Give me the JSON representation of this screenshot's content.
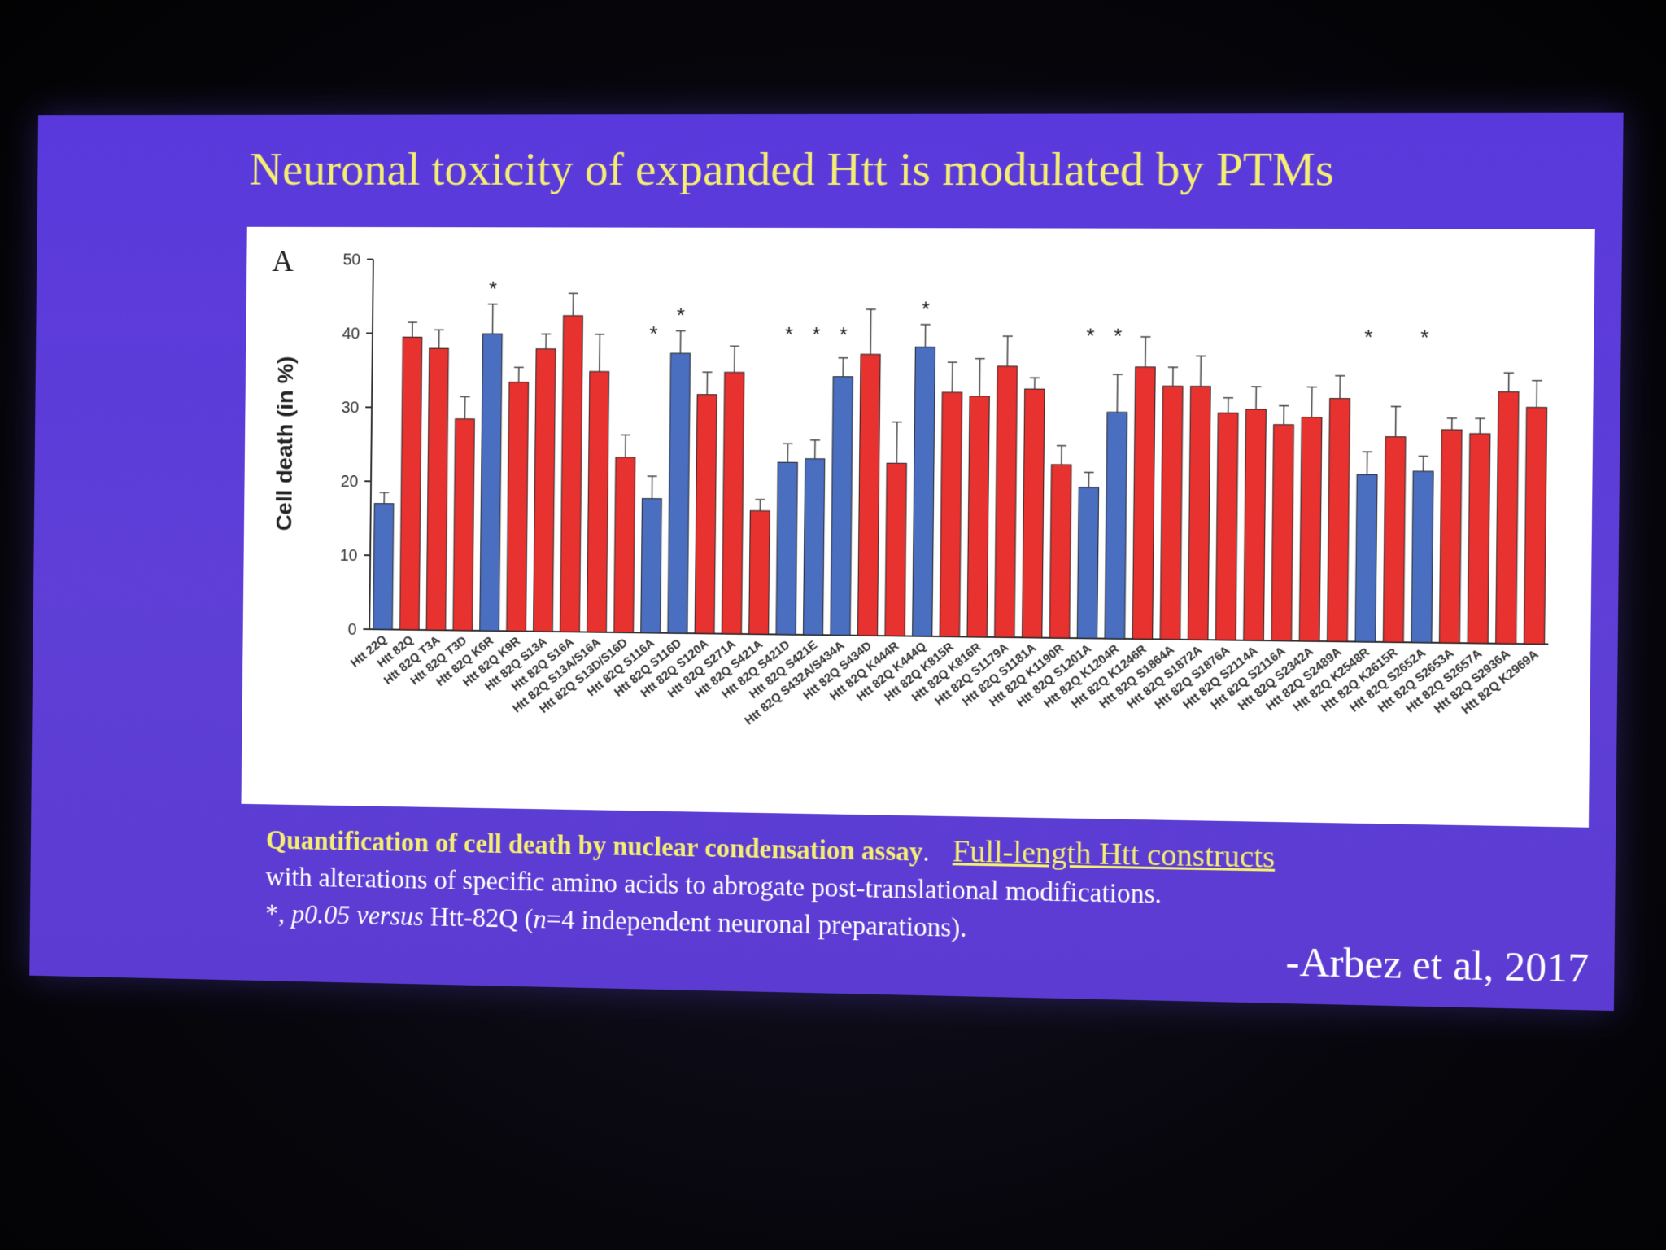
{
  "slide": {
    "title": "Neuronal toxicity of expanded Htt is modulated by PTMs",
    "caption_bold": "Quantification of cell death by nuclear condensation assay",
    "caption_bold_end": ".",
    "caption_underline": "Full-length Htt constructs",
    "caption_line2": "with alterations of specific amino acids to abrogate post-translational modifications.",
    "caption_line3_star": "*, ",
    "caption_line3_p": "p0.05 versus",
    "caption_line3_mid": " Htt-82Q (",
    "caption_line3_n": "n",
    "caption_line3_end": "=4 independent neuronal preparations).",
    "citation": "-Arbez et al, 2017"
  },
  "colors": {
    "red": "#e8322f",
    "blue": "#4a6ec0",
    "slide_bg": "#5c3ad9",
    "title": "#f4ee73"
  },
  "chart_data": {
    "type": "bar",
    "panel_label": "A",
    "ylabel": "Cell death (in %)",
    "ylim": [
      0,
      50
    ],
    "yticks": [
      0,
      10,
      20,
      30,
      40,
      50
    ],
    "categories": [
      "Htt 22Q",
      "Htt 82Q",
      "Htt 82Q T3A",
      "Htt 82Q T3D",
      "Htt 82Q K6R",
      "Htt 82Q K9R",
      "Htt 82Q S13A",
      "Htt 82Q S16A",
      "Htt 82Q S13A/S16A",
      "Htt 82Q S13D/S16D",
      "Htt 82Q S116A",
      "Htt 82Q S116D",
      "Htt 82Q S120A",
      "Htt 82Q S271A",
      "Htt 82Q S421A",
      "Htt 82Q S421D",
      "Htt 82Q S421E",
      "Htt 82Q S432A/S434A",
      "Htt 82Q S434D",
      "Htt 82Q K444R",
      "Htt 82Q K444Q",
      "Htt 82Q K815R",
      "Htt 82Q K816R",
      "Htt 82Q S1179A",
      "Htt 82Q S1181A",
      "Htt 82Q K1190R",
      "Htt 82Q S1201A",
      "Htt 82Q K1204R",
      "Htt 82Q K1246R",
      "Htt 82Q S1864A",
      "Htt 82Q S1872A",
      "Htt 82Q S1876A",
      "Htt 82Q S2114A",
      "Htt 82Q S2116A",
      "Htt 82Q S2342A",
      "Htt 82Q S2489A",
      "Htt 82Q K2548R",
      "Htt 82Q K2615R",
      "Htt 82Q S2652A",
      "Htt 82Q S2653A",
      "Htt 82Q S2657A",
      "Htt 82Q S2936A",
      "Htt 82Q K2969A"
    ],
    "values": [
      17,
      39.5,
      38,
      28.5,
      40,
      33.5,
      38,
      42.5,
      35,
      23.5,
      18,
      37.5,
      32,
      35,
      16.5,
      23,
      23.5,
      34.5,
      37.5,
      23,
      38.5,
      32.5,
      32,
      36,
      33,
      23,
      20,
      30,
      36,
      33.5,
      33.5,
      30,
      30.5,
      28.5,
      29.5,
      32,
      22,
      27,
      22.5,
      28,
      27.5,
      33,
      31
    ],
    "errors": [
      1.5,
      2,
      2.5,
      3,
      4,
      2,
      2,
      3,
      5,
      3,
      3,
      3,
      3,
      3.5,
      1.5,
      2.5,
      2.5,
      2.5,
      6,
      5.5,
      3,
      4,
      5,
      4,
      1.5,
      2.5,
      2,
      5,
      4,
      2.5,
      4,
      2,
      3,
      2.5,
      4,
      3,
      3,
      4,
      2,
      1.5,
      2,
      2.5,
      3.5
    ],
    "colors": [
      "blue",
      "red",
      "red",
      "red",
      "blue",
      "red",
      "red",
      "red",
      "red",
      "red",
      "blue",
      "blue",
      "red",
      "red",
      "red",
      "blue",
      "blue",
      "blue",
      "red",
      "red",
      "blue",
      "red",
      "red",
      "red",
      "red",
      "red",
      "blue",
      "blue",
      "red",
      "red",
      "red",
      "red",
      "red",
      "red",
      "red",
      "red",
      "blue",
      "red",
      "blue",
      "red",
      "red",
      "red",
      "red"
    ],
    "significant": [
      false,
      false,
      false,
      false,
      true,
      false,
      false,
      false,
      false,
      false,
      true,
      true,
      false,
      false,
      false,
      true,
      true,
      true,
      false,
      false,
      true,
      false,
      false,
      false,
      false,
      false,
      true,
      true,
      false,
      false,
      false,
      false,
      false,
      false,
      false,
      false,
      true,
      false,
      true,
      false,
      false,
      false,
      false
    ],
    "significance_marker": "*",
    "grid": false,
    "legend": "none"
  }
}
